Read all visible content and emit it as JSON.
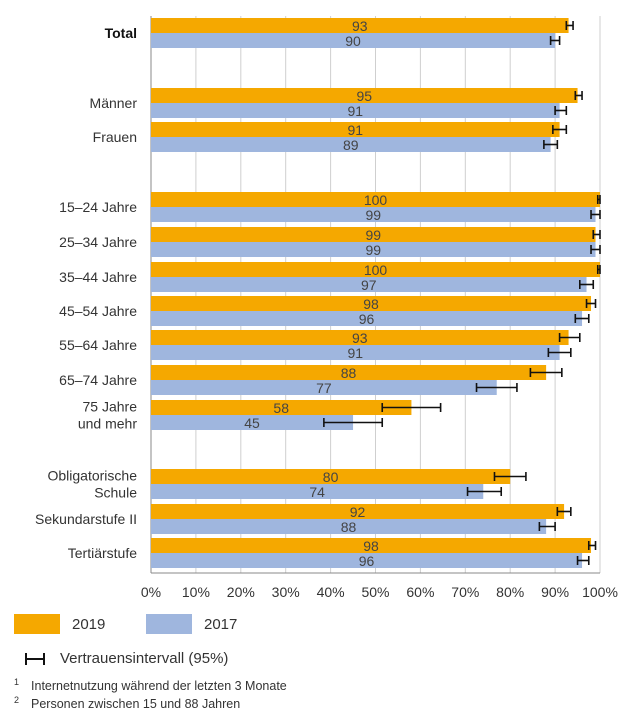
{
  "chart_data": {
    "type": "bar",
    "orientation": "horizontal",
    "xlim": [
      0,
      100
    ],
    "x_ticks": [
      "0%",
      "10%",
      "20%",
      "30%",
      "40%",
      "50%",
      "60%",
      "70%",
      "80%",
      "90%",
      "100%"
    ],
    "grid": true,
    "categories": [
      {
        "label": [
          "Total"
        ],
        "bold": true
      },
      {
        "label": [
          "Männer"
        ]
      },
      {
        "label": [
          "Frauen"
        ]
      },
      {
        "label": [
          "15–24 Jahre"
        ]
      },
      {
        "label": [
          "25–34 Jahre"
        ]
      },
      {
        "label": [
          "35–44 Jahre"
        ]
      },
      {
        "label": [
          "45–54 Jahre"
        ]
      },
      {
        "label": [
          "55–64 Jahre"
        ]
      },
      {
        "label": [
          "65–74 Jahre"
        ]
      },
      {
        "label": [
          "75 Jahre",
          "und mehr"
        ]
      },
      {
        "label": [
          "Obligatorische",
          "Schule"
        ]
      },
      {
        "label": [
          "Sekundarstufe II"
        ]
      },
      {
        "label": [
          "Tertiärstufe"
        ]
      }
    ],
    "series": [
      {
        "name": "2019",
        "color": "#f5a800",
        "values": [
          93,
          95,
          91,
          100,
          99,
          100,
          98,
          93,
          88,
          58,
          80,
          92,
          98
        ],
        "labels": [
          "93",
          "95",
          "91",
          "100",
          "99",
          "100",
          "98",
          "93",
          "88",
          "58",
          "80",
          "92",
          "98"
        ],
        "ci": [
          [
            92.5,
            94
          ],
          [
            94.5,
            96
          ],
          [
            89.5,
            92.5
          ],
          [
            99.5,
            100
          ],
          [
            98.5,
            100
          ],
          [
            99.5,
            100
          ],
          [
            97,
            99
          ],
          [
            91,
            95.5
          ],
          [
            84.5,
            91.5
          ],
          [
            51.5,
            64.5
          ],
          [
            76.5,
            83.5
          ],
          [
            90.5,
            93.5
          ],
          [
            97.5,
            99
          ]
        ]
      },
      {
        "name": "2017",
        "color": "#9fb6de",
        "values": [
          90,
          91,
          89,
          99,
          99,
          97,
          96,
          91,
          77,
          45,
          74,
          88,
          96
        ],
        "labels": [
          "90",
          "91",
          "89",
          "99",
          "99",
          "97",
          "96",
          "91",
          "77",
          "45",
          "74",
          "88",
          "96"
        ],
        "ci": [
          [
            89,
            91
          ],
          [
            90,
            92.5
          ],
          [
            87.5,
            90.5
          ],
          [
            98,
            100
          ],
          [
            98,
            100
          ],
          [
            95.5,
            98.5
          ],
          [
            94.5,
            97.5
          ],
          [
            88.5,
            93.5
          ],
          [
            72.5,
            81.5
          ],
          [
            38.5,
            51.5
          ],
          [
            70.5,
            78
          ],
          [
            86.5,
            90
          ],
          [
            95,
            97.5
          ]
        ]
      }
    ]
  },
  "legend": {
    "series": [
      "2019",
      "2017"
    ],
    "ci_label": "Vertrauensintervall (95%)"
  },
  "footnotes": [
    {
      "marker": "1",
      "text": "Internetnutzung während der letzten 3 Monate"
    },
    {
      "marker": "2",
      "text": "Personen zwischen 15 und 88 Jahren"
    }
  ],
  "colors": {
    "grid": "#cfcfcf",
    "axis": "#888888",
    "errorbar": "#111111"
  }
}
